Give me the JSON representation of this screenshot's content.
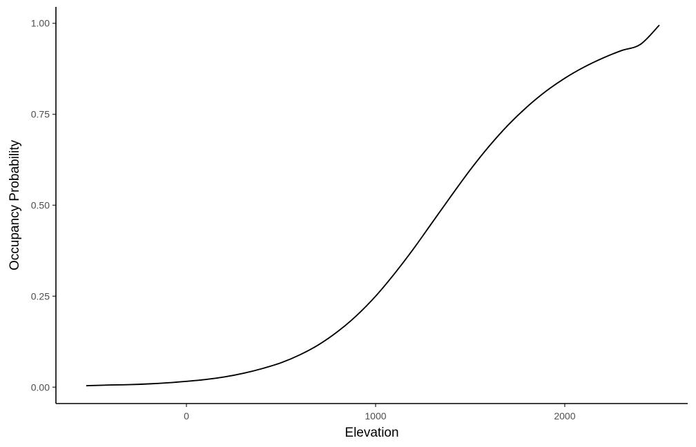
{
  "chart_data": {
    "type": "line",
    "title": "",
    "xlabel": "Elevation",
    "ylabel": "Occupancy Probability",
    "xlim": [
      -690,
      2650
    ],
    "ylim": [
      -0.045,
      1.045
    ],
    "x_ticks": [
      0,
      1000,
      2000
    ],
    "x_tick_labels": [
      "0",
      "1000",
      "2000"
    ],
    "y_ticks": [
      0,
      0.25,
      0.5,
      0.75,
      1
    ],
    "y_tick_labels": [
      "0.00",
      "0.25",
      "0.50",
      "0.75",
      "1.00"
    ],
    "grid": false,
    "legend": "none",
    "colors": {
      "line": "#000000",
      "axis": "#000000",
      "tick_text": "#4d4d4d"
    },
    "series": [
      {
        "x": [
          -530,
          -400,
          -300,
          -200,
          -100,
          0,
          100,
          200,
          300,
          400,
          500,
          600,
          700,
          800,
          900,
          1000,
          1100,
          1200,
          1300,
          1400,
          1500,
          1600,
          1700,
          1800,
          1900,
          2000,
          2100,
          2200,
          2300,
          2400,
          2500
        ],
        "y": [
          0.004,
          0.006,
          0.007,
          0.009,
          0.012,
          0.016,
          0.021,
          0.028,
          0.038,
          0.051,
          0.067,
          0.089,
          0.117,
          0.153,
          0.197,
          0.25,
          0.312,
          0.38,
          0.453,
          0.526,
          0.597,
          0.662,
          0.72,
          0.77,
          0.813,
          0.849,
          0.879,
          0.904,
          0.925,
          0.942,
          0.995
        ]
      }
    ]
  }
}
